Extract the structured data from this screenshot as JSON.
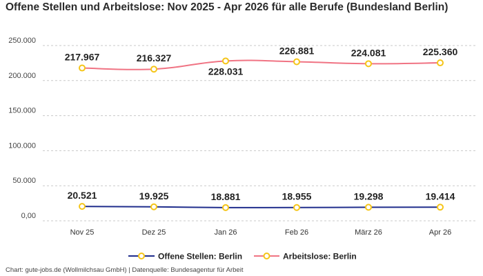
{
  "title": "Offene Stellen und Arbeitslose: Nov 2025 - Apr 2026 für alle Berufe (Bundesland Berlin)",
  "footer": "Chart: gute-jobs.de (Wollmilchsau GmbH) | Datenquelle: Bundesagentur für Arbeit",
  "colors": {
    "offene": "#1f2d8c",
    "arbeitslose": "#f07383",
    "marker_stroke": "#f5c518",
    "grid": "#c8c8c8"
  },
  "chart_data": {
    "type": "line",
    "title": "Offene Stellen und Arbeitslose: Nov 2025 - Apr 2026 für alle Berufe (Bundesland Berlin)",
    "categories": [
      "Nov 25",
      "Dez 25",
      "Jan 26",
      "Feb 26",
      "März 26",
      "Apr 26"
    ],
    "y_ticks": [
      "0,00",
      "50.000",
      "100.000",
      "150.000",
      "200.000",
      "250.000"
    ],
    "ylim": [
      0,
      250000
    ],
    "grid": true,
    "legend_position": "bottom",
    "series": [
      {
        "name": "Offene Stellen: Berlin",
        "values": [
          20521,
          19925,
          18881,
          18955,
          19298,
          19414
        ],
        "labels": [
          "20.521",
          "19.925",
          "18.881",
          "18.955",
          "19.298",
          "19.414"
        ]
      },
      {
        "name": "Arbeitslose: Berlin",
        "values": [
          217967,
          216327,
          228031,
          226881,
          224081,
          225360
        ],
        "labels": [
          "217.967",
          "216.327",
          "228.031",
          "226.881",
          "224.081",
          "225.360"
        ]
      }
    ]
  }
}
